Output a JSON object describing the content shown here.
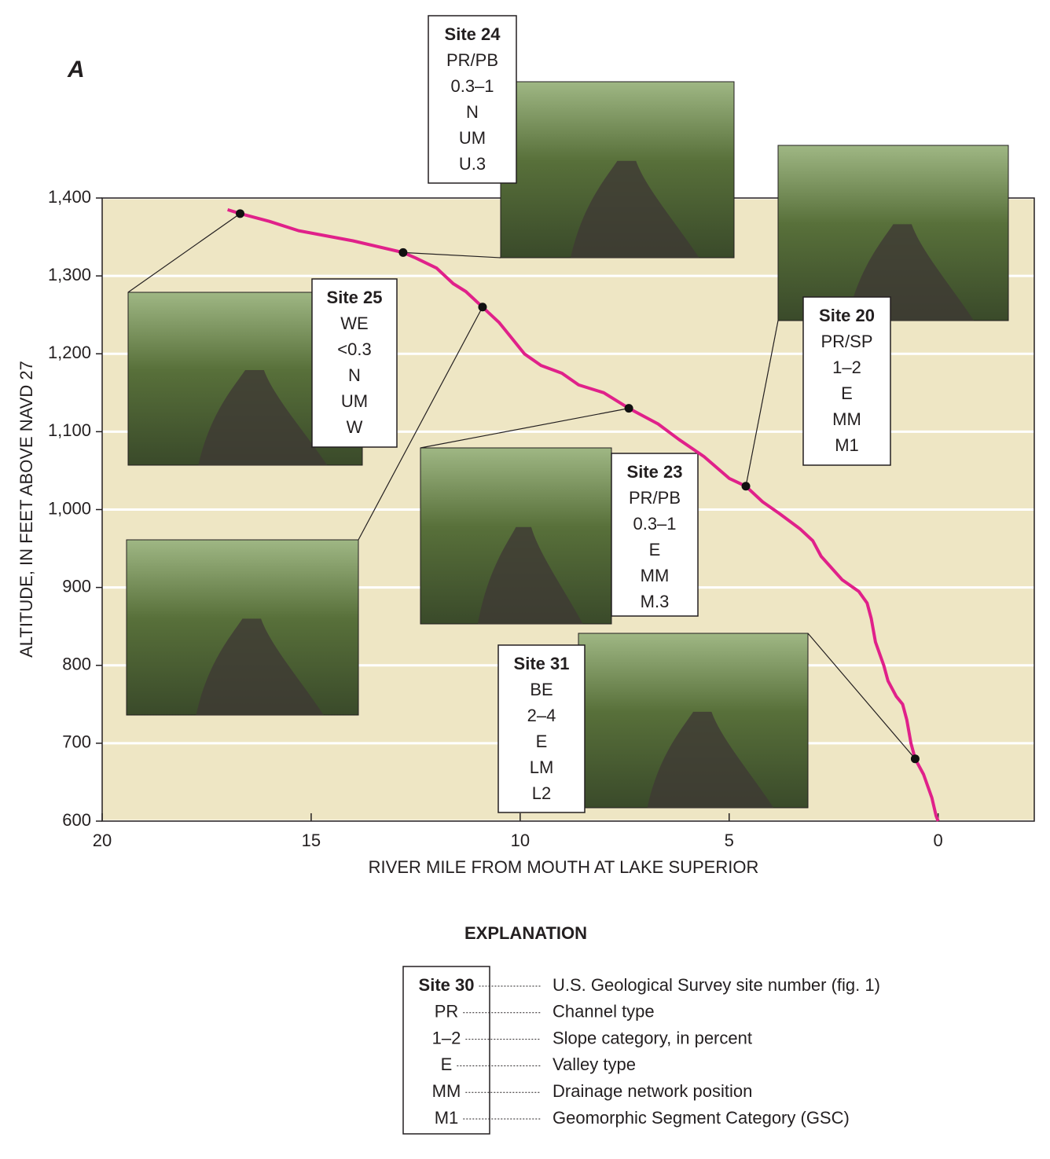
{
  "panel_label": "A",
  "chart_data": {
    "type": "line",
    "x_label": "RIVER MILE FROM MOUTH AT LAKE SUPERIOR",
    "y_label": "ALTITUDE, IN FEET ABOVE NAVD 27",
    "xlim": [
      20,
      -2.3
    ],
    "ylim": [
      600,
      1400
    ],
    "xticks": [
      20,
      15,
      10,
      5,
      0
    ],
    "yticks": [
      600,
      700,
      800,
      900,
      {
        "value": 1000,
        "label": "1,000"
      },
      {
        "value": 1100,
        "label": "1,100"
      },
      {
        "value": 1200,
        "label": "1,200"
      },
      {
        "value": 1300,
        "label": "1,300"
      },
      {
        "value": 1400,
        "label": "1,400"
      }
    ],
    "grid": true,
    "color": "#e0218a",
    "x": [
      17.0,
      16.7,
      16.0,
      15.3,
      14.0,
      12.8,
      12.5,
      12.0,
      11.6,
      11.3,
      10.9,
      10.5,
      10.2,
      9.9,
      9.5,
      9.0,
      8.6,
      8.0,
      7.4,
      6.7,
      6.2,
      5.6,
      5.0,
      4.6,
      4.2,
      3.8,
      3.3,
      3.0,
      2.8,
      2.3,
      1.9,
      1.7,
      1.6,
      1.5,
      1.3,
      1.2,
      1.0,
      0.85,
      0.75,
      0.65,
      0.55,
      0.35,
      0.15,
      0.05,
      0.0
    ],
    "values": [
      1385,
      1380,
      1370,
      1358,
      1345,
      1330,
      1323,
      1310,
      1290,
      1280,
      1260,
      1240,
      1220,
      1200,
      1185,
      1175,
      1160,
      1150,
      1130,
      1110,
      1090,
      1068,
      1040,
      1030,
      1010,
      995,
      975,
      960,
      940,
      910,
      895,
      880,
      860,
      830,
      800,
      780,
      760,
      750,
      730,
      700,
      680,
      660,
      630,
      607,
      600
    ],
    "sites": [
      {
        "x": 16.7,
        "y": 1380,
        "label": "Site 25",
        "attributes": [
          "WE",
          "<0.3",
          "N",
          "UM",
          "W"
        ]
      },
      {
        "x": 12.8,
        "y": 1330,
        "label": "Site 24",
        "attributes": [
          "PR/PB",
          "0.3–1",
          "N",
          "UM",
          "U.3"
        ]
      },
      {
        "x": 10.9,
        "y": 1260
      },
      {
        "x": 7.4,
        "y": 1130,
        "label": "Site 23",
        "attributes": [
          "PR/PB",
          "0.3–1",
          "E",
          "MM",
          "M.3"
        ]
      },
      {
        "x": 4.6,
        "y": 1030,
        "label": "Site 20",
        "attributes": [
          "PR/SP",
          "1–2",
          "E",
          "MM",
          "M1"
        ]
      },
      {
        "x": 0.55,
        "y": 680,
        "label": "Site 31",
        "attributes": [
          "BE",
          "2–4",
          "E",
          "LM",
          "L2"
        ]
      }
    ]
  },
  "explanation": {
    "title": "EXPLANATION",
    "key": [
      "Site 30",
      "PR",
      "1–2",
      "E",
      "MM",
      "M1"
    ],
    "descriptions": [
      "U.S. Geological Survey site number (fig. 1)",
      "Channel type",
      "Slope category, in percent",
      "Valley type",
      "Drainage network position",
      "Geomorphic Segment Category (GSC)"
    ]
  }
}
